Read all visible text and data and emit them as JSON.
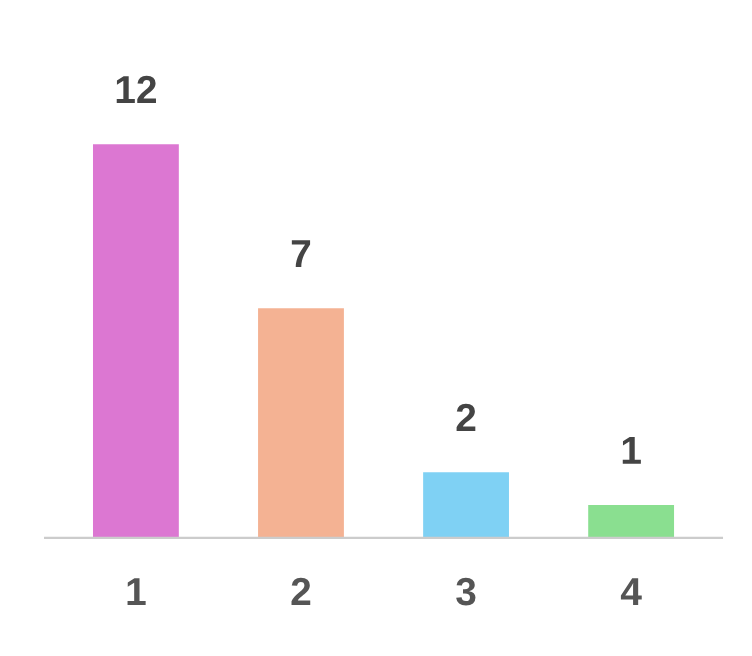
{
  "chart_data": {
    "type": "bar",
    "categories": [
      "1",
      "2",
      "3",
      "4"
    ],
    "values": [
      12,
      7,
      2,
      1
    ],
    "colors": [
      "#dc77d2",
      "#f4b293",
      "#7fd1f4",
      "#8adf90"
    ],
    "data_labels": true,
    "grid": false,
    "legend": false
  }
}
